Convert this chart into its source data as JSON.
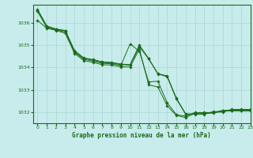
{
  "title": "Graphe pression niveau de la mer (hPa)",
  "bg_color": "#c8ecec",
  "grid_color": "#b0d8d8",
  "line_color": "#1a6b1a",
  "marker_color": "#1a6b1a",
  "xlim": [
    -0.5,
    23
  ],
  "ylim": [
    1031.5,
    1036.8
  ],
  "yticks": [
    1032,
    1033,
    1034,
    1035,
    1036
  ],
  "xticks": [
    0,
    1,
    2,
    3,
    4,
    5,
    6,
    7,
    8,
    9,
    10,
    11,
    12,
    13,
    14,
    15,
    16,
    17,
    18,
    19,
    20,
    21,
    22,
    23
  ],
  "series": [
    [
      1036.6,
      1035.85,
      1035.72,
      1035.65,
      1034.75,
      1034.42,
      1034.35,
      1034.25,
      1034.22,
      1034.15,
      1034.12,
      1035.0,
      1034.4,
      1033.72,
      1033.62,
      1032.62,
      1031.92,
      1031.92,
      1031.92,
      1032.02,
      1032.02,
      1032.12,
      1032.12,
      1032.12
    ],
    [
      1036.55,
      1035.82,
      1035.7,
      1035.62,
      1034.72,
      1034.4,
      1034.32,
      1034.22,
      1034.2,
      1034.12,
      1034.1,
      1034.92,
      1034.38,
      1033.7,
      1033.58,
      1032.58,
      1031.9,
      1031.9,
      1031.9,
      1032.0,
      1032.0,
      1032.1,
      1032.1,
      1032.1
    ],
    [
      1036.5,
      1035.78,
      1035.68,
      1035.58,
      1034.68,
      1034.36,
      1034.28,
      1034.18,
      1034.16,
      1034.08,
      1035.05,
      1034.72,
      1033.35,
      1033.38,
      1032.42,
      1031.88,
      1031.82,
      1031.98,
      1031.98,
      1031.98,
      1032.08,
      1032.08,
      1032.08,
      1032.08
    ],
    [
      1036.1,
      1035.75,
      1035.65,
      1035.52,
      1034.62,
      1034.3,
      1034.22,
      1034.12,
      1034.1,
      1034.02,
      1034.02,
      1034.82,
      1033.22,
      1033.12,
      1032.28,
      1031.85,
      1031.75,
      1031.95,
      1031.95,
      1031.95,
      1032.05,
      1032.05,
      1032.05,
      1032.05
    ]
  ]
}
